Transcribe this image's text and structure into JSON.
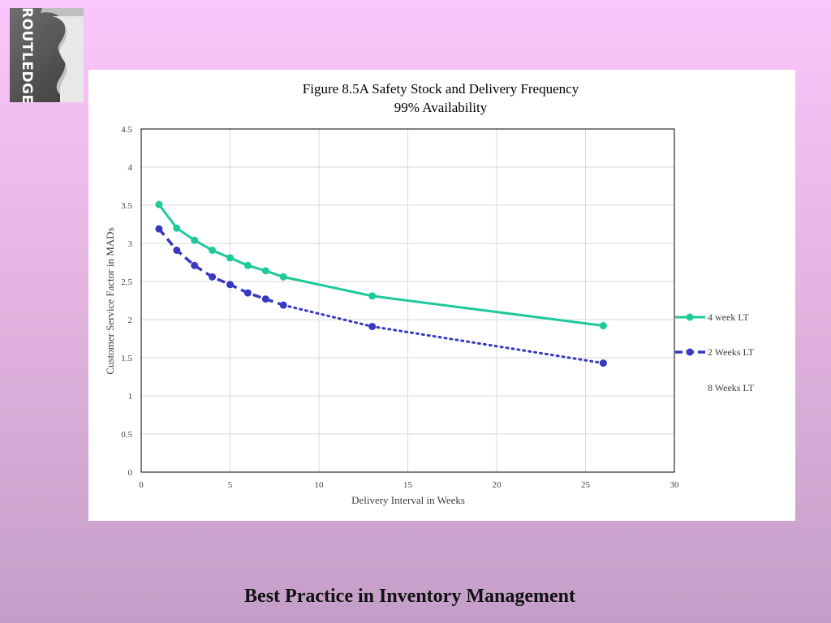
{
  "brand": {
    "logo_text": "ROUTLEDGE"
  },
  "footer": {
    "title": "Best Practice in Inventory Management"
  },
  "colors": {
    "background_top": "#fbc6fb",
    "background_bottom": "#c49ec8",
    "series_4week": "#1ec99a",
    "series_2weeks": "#3838c0",
    "series_8weeks": "#ffffff"
  },
  "chart_data": {
    "type": "line",
    "title": "Figure 8.5A Safety Stock and Delivery Frequency",
    "subtitle": "99% Availability",
    "xlabel": "Delivery Interval in Weeks",
    "ylabel": "Customer Service Factor in MADs",
    "xlim": [
      0,
      30
    ],
    "ylim": [
      0,
      4.5
    ],
    "x_ticks": [
      0,
      5,
      10,
      15,
      20,
      25,
      30
    ],
    "y_ticks": [
      0,
      0.5,
      1,
      1.5,
      2,
      2.5,
      3,
      3.5,
      4,
      4.5
    ],
    "x_tick_labels": [
      "0",
      "5",
      "10",
      "15",
      "20",
      "25",
      "30"
    ],
    "y_tick_labels": [
      "0",
      "0.5",
      "1",
      "1.5",
      "2",
      "2.5",
      "3",
      "3.5",
      "4",
      "4.5"
    ],
    "grid": true,
    "legend_position": "right",
    "series": [
      {
        "name": "4 week LT",
        "color": "#1ec99a",
        "style": "solid",
        "x": [
          1,
          2,
          3,
          4,
          5,
          6,
          7,
          8,
          13,
          26
        ],
        "y": [
          3.51,
          3.2,
          3.04,
          2.91,
          2.81,
          2.71,
          2.64,
          2.56,
          2.31,
          1.92
        ]
      },
      {
        "name": "2 Weeks LT",
        "color": "#3838c0",
        "style": "dash",
        "x": [
          1,
          2,
          3,
          4,
          5,
          6,
          7,
          8,
          13,
          26
        ],
        "y": [
          3.19,
          2.91,
          2.71,
          2.56,
          2.46,
          2.35,
          2.27,
          2.19,
          1.91,
          1.43
        ]
      },
      {
        "name": "8 Weeks LT",
        "color": "#ffffff",
        "style": "solid",
        "x": [],
        "y": []
      }
    ]
  }
}
